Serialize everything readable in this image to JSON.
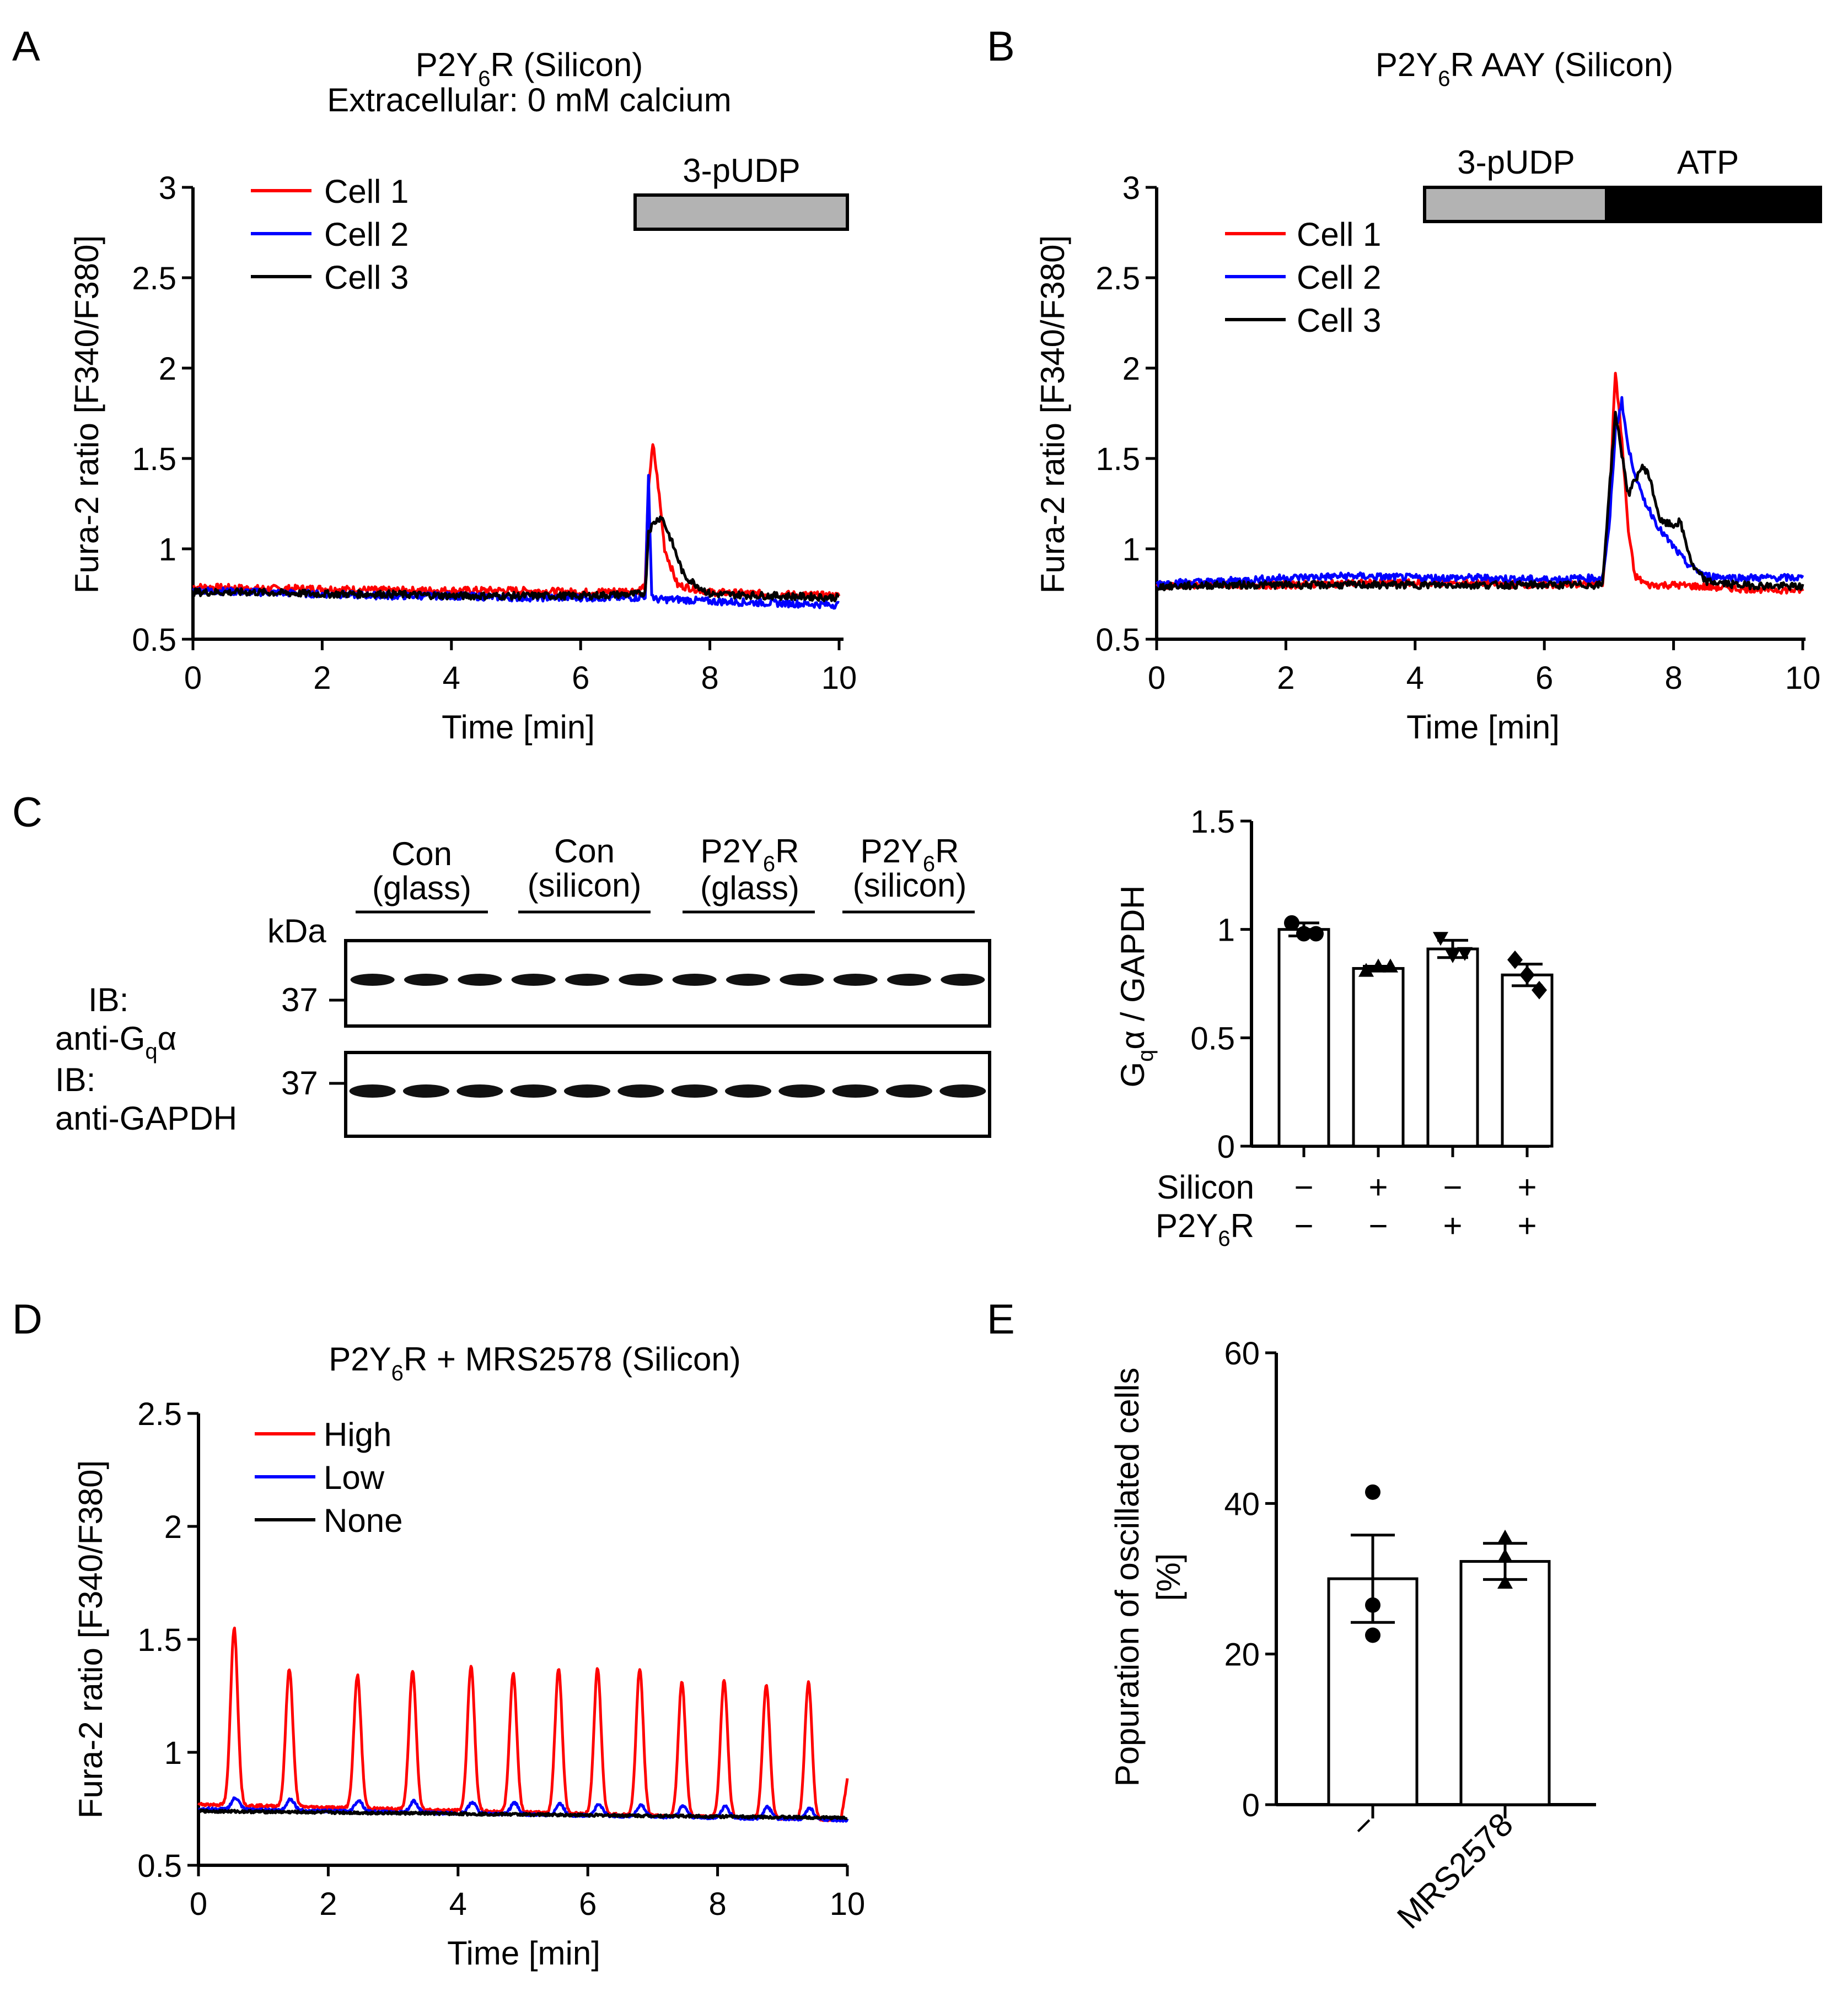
{
  "colors": {
    "red": "#ff0000",
    "blue": "#0000ff",
    "black": "#000000",
    "gray": "#b3b3b3",
    "bar_fill": "#ffffff"
  },
  "chart_data": [
    {
      "id": "A",
      "type": "line",
      "panel_label": "A",
      "title": [
        "P2Y6R (Silicon)",
        "Extracellular: 0 mM calcium"
      ],
      "xlabel": "Time [min]",
      "ylabel": "Fura-2 ratio [F340/F380]",
      "xlim": [
        0,
        10
      ],
      "ylim": [
        0.5,
        3.0
      ],
      "x_ticks": [
        0,
        2,
        4,
        6,
        8,
        10
      ],
      "y_ticks": [
        0.5,
        1.0,
        1.5,
        2.0,
        2.5,
        3.0
      ],
      "stimulus": [
        {
          "label": "3-pUDP",
          "start": 6.9,
          "end": 10.1,
          "fill": "gray"
        }
      ],
      "series": [
        {
          "name": "Cell 1",
          "color": "red",
          "x": [
            0,
            1,
            2,
            3,
            4,
            5,
            6,
            6.9,
            7.0,
            7.05,
            7.12,
            7.2,
            7.3,
            7.5,
            8,
            9,
            10
          ],
          "y": [
            0.79,
            0.78,
            0.78,
            0.77,
            0.77,
            0.77,
            0.76,
            0.77,
            0.8,
            1.35,
            1.58,
            1.35,
            1.0,
            0.8,
            0.76,
            0.75,
            0.74
          ]
        },
        {
          "name": "Cell 2",
          "color": "blue",
          "x": [
            0,
            1,
            2,
            3,
            4,
            5,
            6,
            6.9,
            7.0,
            7.05,
            7.1,
            7.15,
            7.3,
            7.5,
            8,
            9,
            10
          ],
          "y": [
            0.77,
            0.76,
            0.75,
            0.74,
            0.74,
            0.73,
            0.73,
            0.73,
            0.74,
            1.4,
            0.75,
            0.72,
            0.72,
            0.72,
            0.71,
            0.7,
            0.69
          ]
        },
        {
          "name": "Cell 3",
          "color": "black",
          "x": [
            0,
            1,
            2,
            3,
            4,
            5,
            6,
            6.9,
            7.0,
            7.05,
            7.15,
            7.25,
            7.4,
            7.6,
            8,
            9,
            10
          ],
          "y": [
            0.76,
            0.76,
            0.75,
            0.75,
            0.74,
            0.74,
            0.74,
            0.75,
            0.76,
            1.1,
            1.15,
            1.18,
            1.05,
            0.85,
            0.75,
            0.74,
            0.73
          ]
        }
      ],
      "legend": [
        "Cell 1",
        "Cell 2",
        "Cell 3"
      ]
    },
    {
      "id": "B",
      "type": "line",
      "panel_label": "B",
      "title": [
        "P2Y6R AAY (Silicon)"
      ],
      "xlabel": "Time [min]",
      "ylabel": "Fura-2 ratio [F340/F380]",
      "xlim": [
        0,
        10
      ],
      "ylim": [
        0.5,
        3.0
      ],
      "x_ticks": [
        0,
        2,
        4,
        6,
        8,
        10
      ],
      "y_ticks": [
        0.5,
        1.0,
        1.5,
        2.0,
        2.5,
        3.0
      ],
      "stimulus": [
        {
          "label": "3-pUDP",
          "start": 4.2,
          "end": 7.0,
          "fill": "gray"
        },
        {
          "label": "ATP",
          "start": 7.0,
          "end": 10.2,
          "fill": "black"
        }
      ],
      "series": [
        {
          "name": "Cell 1",
          "color": "red",
          "x": [
            0,
            1,
            2,
            3,
            4,
            5,
            6,
            6.9,
            7.0,
            7.1,
            7.2,
            7.3,
            7.4,
            7.6,
            8,
            9,
            10
          ],
          "y": [
            0.8,
            0.8,
            0.8,
            0.81,
            0.81,
            0.81,
            0.8,
            0.81,
            1.2,
            1.98,
            1.6,
            1.1,
            0.85,
            0.8,
            0.8,
            0.78,
            0.77
          ]
        },
        {
          "name": "Cell 2",
          "color": "blue",
          "x": [
            0,
            1,
            2,
            3,
            4,
            5,
            6,
            6.9,
            7.0,
            7.1,
            7.2,
            7.3,
            7.5,
            7.8,
            8.2,
            8.5,
            9,
            10
          ],
          "y": [
            0.81,
            0.82,
            0.84,
            0.85,
            0.84,
            0.84,
            0.83,
            0.84,
            1.1,
            1.65,
            1.82,
            1.55,
            1.3,
            1.1,
            0.92,
            0.85,
            0.84,
            0.84
          ]
        },
        {
          "name": "Cell 3",
          "color": "black",
          "x": [
            0,
            1,
            2,
            3,
            4,
            5,
            6,
            6.9,
            7.0,
            7.1,
            7.3,
            7.5,
            7.6,
            7.8,
            8.0,
            8.1,
            8.3,
            8.5,
            9,
            10
          ],
          "y": [
            0.79,
            0.8,
            0.8,
            0.8,
            0.8,
            0.8,
            0.8,
            0.8,
            1.3,
            1.75,
            1.3,
            1.45,
            1.43,
            1.15,
            1.13,
            1.15,
            0.9,
            0.82,
            0.8,
            0.79
          ]
        }
      ],
      "legend": [
        "Cell 1",
        "Cell 2",
        "Cell 3"
      ]
    },
    {
      "id": "C-blot",
      "type": "table",
      "panel_label": "C",
      "groups": [
        "Con (glass)",
        "Con (silicon)",
        "P2Y6R (glass)",
        "P2Y6R (silicon)"
      ],
      "marker_unit": "kDa",
      "blots": [
        {
          "probe": "IB: anti-Gqα",
          "marker": "37"
        },
        {
          "probe": "IB: anti-GAPDH",
          "marker": "37"
        }
      ],
      "lanes_per_group": 3
    },
    {
      "id": "C-bar",
      "type": "bar",
      "ylabel": "Gqα / GAPDH",
      "ylim": [
        0,
        1.5
      ],
      "y_ticks": [
        0,
        0.5,
        1.0,
        1.5
      ],
      "row_labels": [
        "Silicon",
        "P2Y6R"
      ],
      "conditions": [
        [
          "−",
          "−"
        ],
        [
          "+",
          "−"
        ],
        [
          "−",
          "+"
        ],
        [
          "+",
          "+"
        ]
      ],
      "values": [
        1.0,
        0.82,
        0.91,
        0.79
      ],
      "errors": [
        0.03,
        0.01,
        0.04,
        0.05
      ],
      "points": [
        [
          1.03,
          0.98,
          0.98
        ],
        [
          0.81,
          0.83,
          0.83
        ],
        [
          0.96,
          0.88,
          0.89
        ],
        [
          0.86,
          0.79,
          0.72
        ]
      ],
      "markers": [
        "circle",
        "triangle-up",
        "triangle-down",
        "diamond"
      ]
    },
    {
      "id": "D",
      "type": "line",
      "panel_label": "D",
      "title": [
        "P2Y6R + MRS2578 (Silicon)"
      ],
      "xlabel": "Time [min]",
      "ylabel": "Fura-2 ratio [F340/F380]",
      "xlim": [
        0,
        10
      ],
      "ylim": [
        0.5,
        2.5
      ],
      "x_ticks": [
        0,
        2,
        4,
        6,
        8,
        10
      ],
      "y_ticks": [
        0.5,
        1.0,
        1.5,
        2.0,
        2.5
      ],
      "peak_times": [
        0.55,
        1.4,
        2.45,
        3.3,
        4.2,
        4.85,
        5.55,
        6.15,
        6.8,
        7.45,
        8.1,
        8.75,
        9.4
      ],
      "peak_heights": [
        1.55,
        1.37,
        1.34,
        1.36,
        1.38,
        1.35,
        1.37,
        1.37,
        1.37,
        1.31,
        1.32,
        1.3,
        1.31
      ],
      "series": [
        {
          "name": "High",
          "color": "red",
          "baseline": [
            0.77,
            0.7
          ]
        },
        {
          "name": "Low",
          "color": "blue",
          "baseline": [
            0.75,
            0.7
          ]
        },
        {
          "name": "None",
          "color": "black",
          "baseline": [
            0.74,
            0.71
          ]
        }
      ],
      "legend": [
        "High",
        "Low",
        "None"
      ]
    },
    {
      "id": "E",
      "type": "bar",
      "panel_label": "E",
      "ylabel": [
        "Popuration of oscillated cells",
        "[%]"
      ],
      "ylim": [
        0,
        60
      ],
      "y_ticks": [
        0,
        20,
        40,
        60
      ],
      "categories": [
        "−",
        "MRS2578"
      ],
      "values": [
        30,
        32.3
      ],
      "errors": [
        5.8,
        2.4
      ],
      "points": [
        [
          41.5,
          26.5,
          22.5
        ],
        [
          35.5,
          33.0,
          29.5
        ]
      ],
      "markers": [
        "circle",
        "triangle-up"
      ]
    }
  ]
}
